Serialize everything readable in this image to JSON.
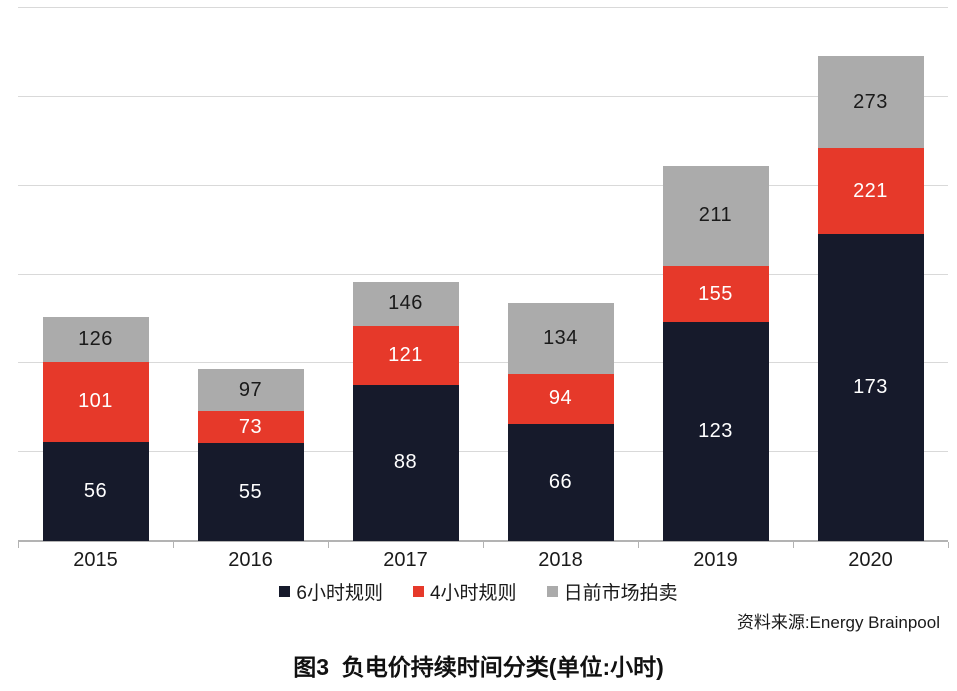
{
  "caption": "图3  负电价持续时间分类(单位:小时)",
  "source": "资料来源:Energy Brainpool",
  "chart_data": {
    "type": "bar",
    "stacked": true,
    "values_are_cumulative": true,
    "title": "图3  负电价持续时间分类(单位:小时)",
    "categories": [
      "2015",
      "2016",
      "2017",
      "2018",
      "2019",
      "2020"
    ],
    "series": [
      {
        "name": "6小时规则",
        "color": "#161a2b",
        "label_color": "#ffffff",
        "values": [
          56,
          55,
          88,
          66,
          123,
          173
        ]
      },
      {
        "name": "4小时规则",
        "color": "#e6392a",
        "label_color": "#ffffff",
        "values": [
          101,
          73,
          121,
          94,
          155,
          221
        ]
      },
      {
        "name": "日前市场拍卖",
        "color": "#ababab",
        "label_color": "#1a1a1a",
        "values": [
          126,
          97,
          146,
          134,
          211,
          273
        ]
      }
    ],
    "xlabel": "",
    "ylabel": "",
    "ylim": [
      0,
      300
    ],
    "grid_step": 50,
    "grid": true,
    "y_axis_labels_visible": false,
    "legend_position": "bottom",
    "gridline_color": "#d9d9d9",
    "axis_color": "#b3b3b3"
  }
}
